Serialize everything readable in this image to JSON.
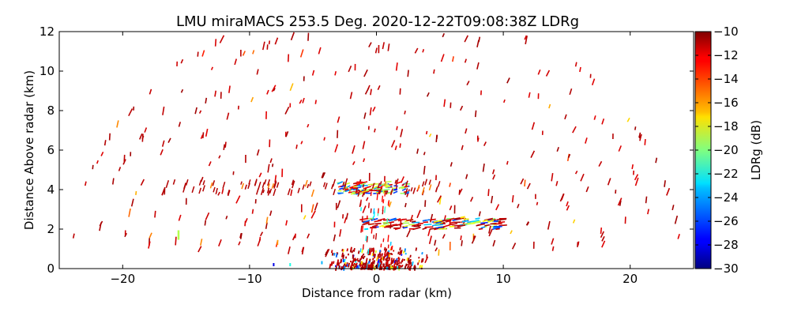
{
  "chart_data": {
    "type": "heatmap",
    "title": "LMU miraMACS 253.5 Deg. 2020-12-22T09:08:38Z  LDRg",
    "xlabel": "Distance from radar (km)",
    "ylabel": "Distance Above radar  (km)",
    "xlim": [
      -25,
      25
    ],
    "ylim": [
      0,
      12
    ],
    "x_ticks": [
      -20,
      -10,
      0,
      10,
      20
    ],
    "x_tick_labels": [
      "−20",
      "−10",
      "0",
      "10",
      "20"
    ],
    "y_ticks": [
      0,
      2,
      4,
      6,
      8,
      10,
      12
    ],
    "y_tick_labels": [
      "0",
      "2",
      "4",
      "6",
      "8",
      "10",
      "12"
    ],
    "colorbar": {
      "label": "LDRg (dB)",
      "min": -30,
      "max": -10,
      "colormap": "jet",
      "ticks": [
        -30,
        -28,
        -26,
        -24,
        -22,
        -20,
        -18,
        -16,
        -14,
        -12,
        -10
      ],
      "tick_labels": [
        "−30",
        "−28",
        "−26",
        "−24",
        "−22",
        "−20",
        "−18",
        "−16",
        "−14",
        "−12",
        "−10"
      ]
    },
    "features": [
      {
        "x": 0,
        "y": 0.2,
        "value": -11
      },
      {
        "x": 0,
        "y": 4.1,
        "value": -18
      },
      {
        "x": 4.0,
        "y": 2.4,
        "value": -17
      },
      {
        "x": 0,
        "y": 2.0,
        "value": -22
      }
    ]
  }
}
